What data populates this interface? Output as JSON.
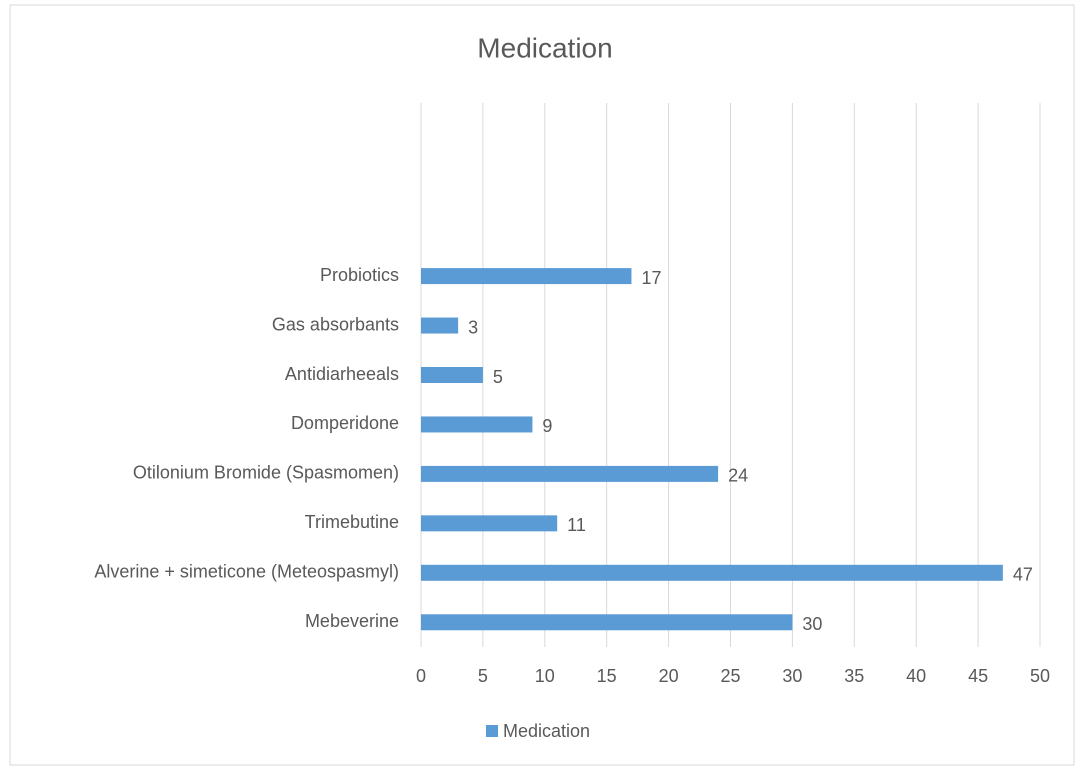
{
  "chart_data": {
    "type": "bar",
    "orientation": "horizontal",
    "title": "Medication",
    "categories": [
      "Mebeverine",
      "Alverine + simeticone (Meteospasmyl)",
      "Trimebutine",
      "Otilonium Bromide (Spasmomen)",
      "Domperidone",
      "Antidiarheeals",
      "Gas absorbants",
      "Probiotics",
      null,
      null,
      null
    ],
    "series": [
      {
        "name": "Medication",
        "color": "#5b9bd5",
        "values": [
          30,
          47,
          11,
          24,
          9,
          5,
          3,
          17,
          null,
          null,
          null
        ]
      }
    ],
    "xlim": [
      0,
      50
    ],
    "xticks": [
      0,
      5,
      10,
      15,
      20,
      25,
      30,
      35,
      40,
      45,
      50
    ],
    "grid": true,
    "legend": "bottom"
  }
}
